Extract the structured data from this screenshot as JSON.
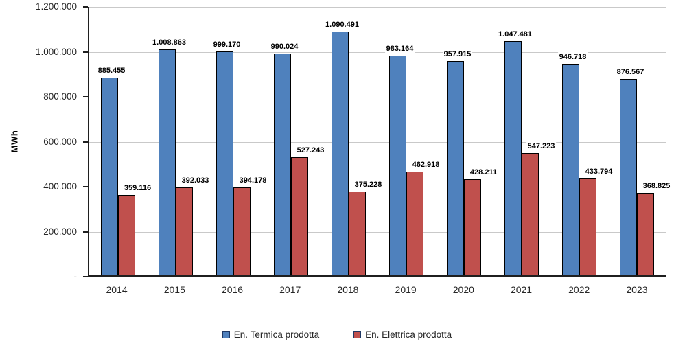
{
  "chart_data": {
    "type": "bar",
    "title": "",
    "xlabel": "",
    "ylabel": "MWh",
    "ylim": [
      0,
      1200000
    ],
    "grid": true,
    "legend_position": "bottom",
    "y_ticks": [
      "1.200.000",
      "1.000.000",
      "800.000",
      "600.000",
      "400.000",
      "200.000",
      "-"
    ],
    "categories": [
      "2014",
      "2015",
      "2016",
      "2017",
      "2018",
      "2019",
      "2020",
      "2021",
      "2022",
      "2023"
    ],
    "series": [
      {
        "name": "En. Termica prodotta",
        "color": "#4F81BD",
        "values": [
          885455,
          1008863,
          999170,
          990024,
          1090491,
          983164,
          957915,
          1047481,
          946718,
          876567
        ],
        "labels": [
          "885.455",
          "1.008.863",
          "999.170",
          "990.024",
          "1.090.491",
          "983.164",
          "957.915",
          "1.047.481",
          "946.718",
          "876.567"
        ]
      },
      {
        "name": "En. Elettrica prodotta",
        "color": "#C0504D",
        "values": [
          359116,
          392033,
          394178,
          527243,
          375228,
          462918,
          428211,
          547223,
          433794,
          368825
        ],
        "labels": [
          "359.116",
          "392.033",
          "394.178",
          "527.243",
          "375.228",
          "462.918",
          "428.211",
          "547.223",
          "433.794",
          "368.825"
        ]
      }
    ]
  }
}
